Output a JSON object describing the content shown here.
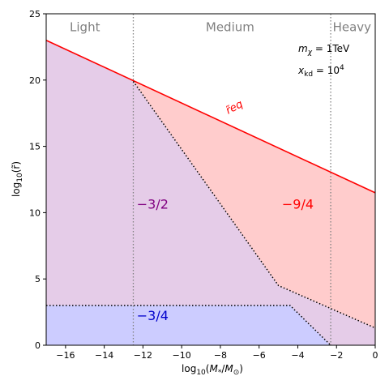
{
  "chart_data": {
    "type": "area",
    "title": "",
    "xlabel": "log10(M*/M⊙)",
    "ylabel": "log10(r̃)",
    "xlim": [
      -17,
      0
    ],
    "ylim": [
      0,
      25
    ],
    "xticks": [
      -16,
      -14,
      -12,
      -10,
      -8,
      -6,
      -4,
      -2,
      0
    ],
    "yticks": [
      0,
      5,
      10,
      15,
      20,
      25
    ],
    "xtick_labels": [
      "−16",
      "−14",
      "−12",
      "−10",
      "−8",
      "−6",
      "−4",
      "−2",
      "0"
    ],
    "ytick_labels": [
      "0",
      "5",
      "10",
      "15",
      "20",
      "25"
    ],
    "grid": false,
    "lines": [
      {
        "name": "r̃eq",
        "style": "solid",
        "color": "#ff0000",
        "x": [
          -17,
          0
        ],
        "y": [
          23,
          11.5
        ]
      },
      {
        "name": "",
        "style": "dotted",
        "color": "#000000",
        "x": [
          -12.5,
          -5.0,
          0
        ],
        "y": [
          19.9,
          4.5,
          1.3
        ]
      },
      {
        "name": "",
        "style": "dotted",
        "color": "#000000",
        "x": [
          -17,
          -4.4,
          -2.3
        ],
        "y": [
          3.0,
          3.0,
          0
        ]
      }
    ],
    "vertical_lines": [
      {
        "x": -12.5,
        "style": "dotted",
        "color": "#808080"
      },
      {
        "x": -2.3,
        "style": "dotted",
        "color": "#808080"
      }
    ],
    "regions": [
      {
        "label": "−3/2",
        "fill": "#e5cce8",
        "label_color": "#800080",
        "label_at": [
          -11.5,
          10.3
        ],
        "polygon": [
          [
            -17,
            0
          ],
          [
            -17,
            23
          ],
          [
            -12.5,
            19.9
          ],
          [
            -5.0,
            4.5
          ],
          [
            0,
            1.3
          ],
          [
            0,
            0
          ]
        ]
      },
      {
        "label": "−9/4",
        "fill": "#ffcccc",
        "label_color": "#ff0000",
        "label_at": [
          -4.0,
          10.3
        ],
        "polygon": [
          [
            -12.5,
            19.9
          ],
          [
            0,
            11.5
          ],
          [
            0,
            1.3
          ],
          [
            -5.0,
            4.5
          ]
        ]
      },
      {
        "label": "−3/4",
        "fill": "#ccccff",
        "label_color": "#0000cc",
        "label_at": [
          -11.5,
          1.9
        ],
        "polygon": [
          [
            -17,
            0
          ],
          [
            -17,
            3.0
          ],
          [
            -4.4,
            3.0
          ],
          [
            -2.3,
            0
          ]
        ]
      }
    ],
    "annotations": [
      {
        "text": "Light",
        "x": -15.0,
        "y": 24.0
      },
      {
        "text": "Medium",
        "x": -7.5,
        "y": 24.0
      },
      {
        "text": "Heavy",
        "x": -1.2,
        "y": 24.0
      },
      {
        "text": "r̃eq",
        "x": -7.3,
        "y": 18.0,
        "color": "#ff0000",
        "rotation": -28
      }
    ],
    "params": [
      "mχ = 1TeV",
      "xkd = 10⁴"
    ]
  }
}
